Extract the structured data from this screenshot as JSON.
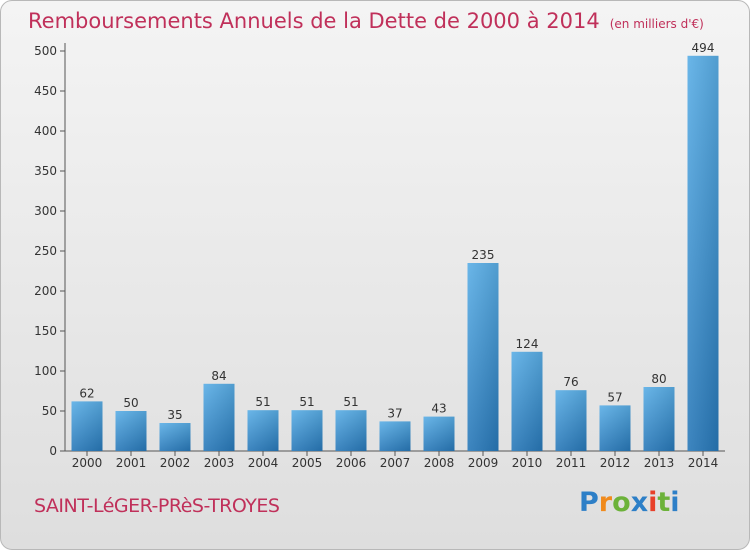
{
  "title": "Remboursements Annuels de la Dette de 2000 à 2014",
  "unit": "(en milliers d'€)",
  "commune": "SAINT-LéGER-PRèS-TROYES",
  "logo": {
    "letters": [
      "P",
      "r",
      "o",
      "x",
      "i",
      "t",
      "i"
    ],
    "colors": [
      "#2d7fc7",
      "#f08a1c",
      "#6cb23a",
      "#2d7fc7",
      "#e8402a",
      "#6cb23a",
      "#2d7fc7"
    ]
  },
  "colors": {
    "bar_top": "#5aaee6",
    "bar_bottom": "#2878b8",
    "text": "#c0305a"
  },
  "chart_data": {
    "type": "bar",
    "categories": [
      "2000",
      "2001",
      "2002",
      "2003",
      "2004",
      "2005",
      "2006",
      "2007",
      "2008",
      "2009",
      "2010",
      "2011",
      "2012",
      "2013",
      "2014"
    ],
    "values": [
      62,
      50,
      35,
      84,
      51,
      51,
      51,
      37,
      43,
      235,
      124,
      76,
      57,
      80,
      494
    ],
    "yticks": [
      0,
      50,
      100,
      150,
      200,
      250,
      300,
      350,
      400,
      450,
      500
    ],
    "ylim": [
      0,
      500
    ],
    "grid": false
  }
}
